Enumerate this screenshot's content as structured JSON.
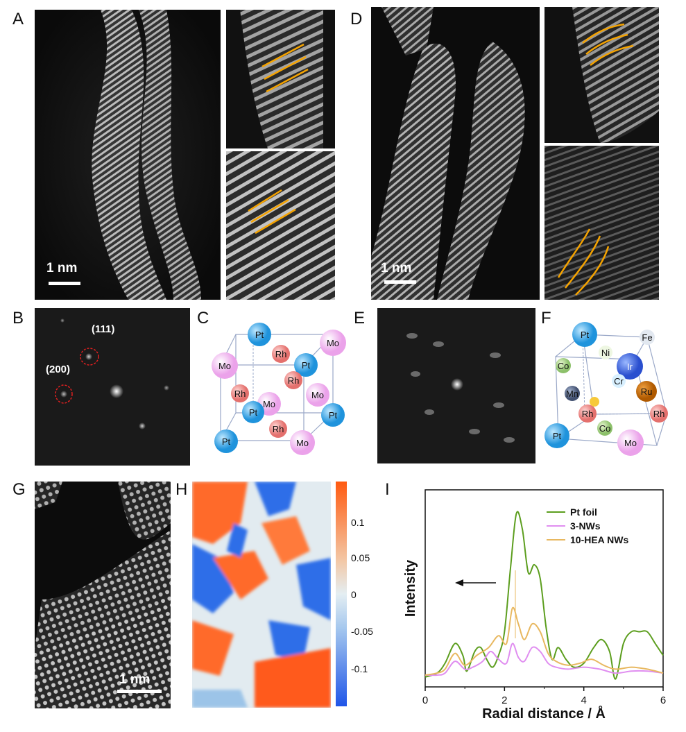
{
  "panels": {
    "A": "A",
    "B": "B",
    "C": "C",
    "D": "D",
    "E": "E",
    "F": "F",
    "G": "G",
    "H": "H",
    "I": "I"
  },
  "scalebars": {
    "A": "1 nm",
    "D": "1 nm",
    "G": "1 nm"
  },
  "fft_labels": {
    "p111": "(111)",
    "p200": "(200)"
  },
  "crystal_C": {
    "atoms": [
      "Pt",
      "Mo",
      "Rh",
      "Pt",
      "Mo",
      "Rh",
      "Rh",
      "Mo",
      "Mo",
      "Pt",
      "Pt",
      "Rh",
      "Pt",
      "Mo"
    ]
  },
  "crystal_F": {
    "atoms": [
      "Pt",
      "Fe",
      "Ni",
      "Co",
      "Ir",
      "Cr",
      "Mn",
      "Ru",
      "Rh",
      "Rh",
      "Co",
      "Pt",
      "Mo"
    ]
  },
  "colors": {
    "Pt": "#3aa8e8",
    "Mo": "#f2b6f0",
    "Rh": "#f08a88",
    "accent_line": "#f5a300",
    "pt_foil": "#5c9e1e",
    "nws3": "#e08ef0",
    "hea10": "#e8b860"
  },
  "colorbar": {
    "ticks": [
      "0.1",
      "0.05",
      "0",
      "-0.05",
      "-0.1"
    ]
  },
  "chart_data": {
    "type": "line",
    "title": "",
    "xlabel": "Radial distance / Å",
    "ylabel": "Intensity",
    "xlim": [
      0,
      6
    ],
    "x_ticks": [
      "0",
      "2",
      "4",
      "6"
    ],
    "legend_position": "top-right",
    "series": [
      {
        "name": "Pt foil",
        "x": [
          0,
          0.3,
          0.5,
          0.75,
          0.95,
          1.05,
          1.25,
          1.4,
          1.55,
          1.7,
          1.85,
          2.0,
          2.15,
          2.3,
          2.45,
          2.6,
          2.75,
          2.9,
          3.05,
          3.2,
          3.35,
          3.55,
          3.75,
          4.0,
          4.25,
          4.45,
          4.65,
          4.8,
          5.0,
          5.2,
          5.4,
          5.6,
          5.8,
          6.0
        ],
        "y": [
          0.05,
          0.07,
          0.12,
          0.22,
          0.16,
          0.08,
          0.18,
          0.2,
          0.14,
          0.1,
          0.16,
          0.28,
          0.6,
          0.88,
          0.8,
          0.58,
          0.62,
          0.55,
          0.3,
          0.14,
          0.2,
          0.14,
          0.1,
          0.12,
          0.2,
          0.24,
          0.18,
          0.04,
          0.22,
          0.28,
          0.28,
          0.28,
          0.22,
          0.16
        ]
      },
      {
        "name": "3-NWs",
        "x": [
          0,
          0.3,
          0.5,
          0.75,
          1.0,
          1.2,
          1.45,
          1.65,
          1.85,
          2.05,
          2.2,
          2.35,
          2.5,
          2.7,
          2.9,
          3.1,
          3.3,
          3.6,
          4.0,
          4.4,
          4.8,
          5.2,
          5.6,
          6.0
        ],
        "y": [
          0.06,
          0.06,
          0.07,
          0.13,
          0.09,
          0.1,
          0.13,
          0.18,
          0.14,
          0.12,
          0.22,
          0.15,
          0.13,
          0.2,
          0.18,
          0.12,
          0.1,
          0.09,
          0.1,
          0.09,
          0.07,
          0.08,
          0.08,
          0.07
        ]
      },
      {
        "name": "10-HEA NWs",
        "x": [
          0,
          0.3,
          0.5,
          0.75,
          1.0,
          1.3,
          1.6,
          1.85,
          2.05,
          2.2,
          2.35,
          2.5,
          2.7,
          2.9,
          3.1,
          3.3,
          3.6,
          3.9,
          4.2,
          4.5,
          4.8,
          5.2,
          5.6,
          6.0
        ],
        "y": [
          0.06,
          0.07,
          0.09,
          0.17,
          0.11,
          0.16,
          0.2,
          0.26,
          0.22,
          0.4,
          0.32,
          0.24,
          0.32,
          0.28,
          0.17,
          0.13,
          0.11,
          0.12,
          0.14,
          0.11,
          0.09,
          0.1,
          0.09,
          0.07
        ]
      }
    ]
  }
}
